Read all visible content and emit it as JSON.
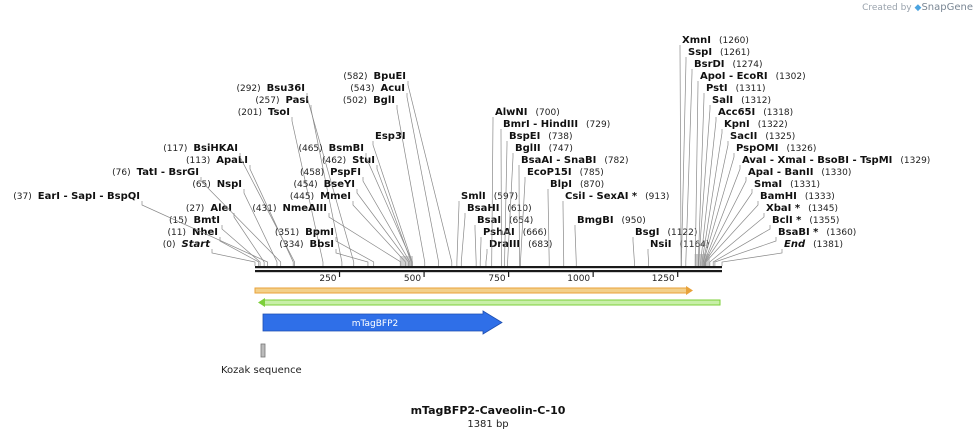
{
  "credit": {
    "prefix": "Created by",
    "brand": "SnapGene"
  },
  "map": {
    "length": 1381,
    "name": "mTagBFP2-Caveolin-C-10",
    "length_label": "1381 bp",
    "ticks": [
      250,
      500,
      750,
      1000,
      1250
    ],
    "colors": {
      "backbone": "#1a1a1a",
      "orange_arrow": "#e8a23a",
      "green_arrow": "#7ccf3a",
      "feature_blue": "#2f6fe8",
      "leader": "#777777"
    },
    "features": [
      {
        "name": "mTagBFP2",
        "start": 27,
        "end": 735,
        "direction": "forward",
        "color": "#2f6fe8"
      },
      {
        "name": "Kozak sequence",
        "start": 21,
        "end": 31,
        "color": "#bbbbbb"
      }
    ],
    "sites": [
      {
        "pos": 0,
        "text": "(0)",
        "name": "Start",
        "italic": true
      },
      {
        "pos": 11,
        "text": "(11)",
        "name": "NheI"
      },
      {
        "pos": 15,
        "text": "(15)",
        "name": "BmtI"
      },
      {
        "pos": 27,
        "text": "(27)",
        "name": "AleI"
      },
      {
        "pos": 37,
        "text": "(37)",
        "name": "EarI - SapI - BspQI"
      },
      {
        "pos": 65,
        "text": "(65)",
        "name": "NspI"
      },
      {
        "pos": 76,
        "text": "(76)",
        "name": "TatI - BsrGI"
      },
      {
        "pos": 113,
        "text": "(113)",
        "name": "ApaLI"
      },
      {
        "pos": 117,
        "text": "(117)",
        "name": "BsiHKAI"
      },
      {
        "pos": 201,
        "text": "(201)",
        "name": "TsoI"
      },
      {
        "pos": 257,
        "text": "(257)",
        "name": "PasI"
      },
      {
        "pos": 292,
        "text": "(292)",
        "name": "Bsu36I"
      },
      {
        "pos": 334,
        "text": "(334)",
        "name": "BbsI"
      },
      {
        "pos": 351,
        "text": "(351)",
        "name": "BpmI"
      },
      {
        "pos": 431,
        "text": "(431)",
        "name": "NmeAIII"
      },
      {
        "pos": 445,
        "text": "(445)",
        "name": "MmeI"
      },
      {
        "pos": 454,
        "text": "(454)",
        "name": "BseYI"
      },
      {
        "pos": 458,
        "text": "(458)",
        "name": "PspFI"
      },
      {
        "pos": 462,
        "text": "(462)",
        "name": "StuI"
      },
      {
        "pos": 465,
        "text": "(465)",
        "name": "BsmBI"
      },
      {
        "pos": 465,
        "text": "",
        "name": "Esp3I"
      },
      {
        "pos": 502,
        "text": "(502)",
        "name": "BglI"
      },
      {
        "pos": 543,
        "text": "(543)",
        "name": "AcuI"
      },
      {
        "pos": 582,
        "text": "(582)",
        "name": "BpuEI"
      },
      {
        "pos": 597,
        "text": "(597)",
        "name": "SmlI"
      },
      {
        "pos": 610,
        "text": "(610)",
        "name": "BsaHI"
      },
      {
        "pos": 654,
        "text": "(654)",
        "name": "BsaI"
      },
      {
        "pos": 666,
        "text": "(666)",
        "name": "PshAI"
      },
      {
        "pos": 683,
        "text": "(683)",
        "name": "DraIII"
      },
      {
        "pos": 700,
        "text": "(700)",
        "name": "AlwNI"
      },
      {
        "pos": 729,
        "text": "(729)",
        "name": "BmrI - HindIII"
      },
      {
        "pos": 738,
        "text": "(738)",
        "name": "BspEI"
      },
      {
        "pos": 747,
        "text": "(747)",
        "name": "BglII"
      },
      {
        "pos": 782,
        "text": "(782)",
        "name": "BsaAI - SnaBI"
      },
      {
        "pos": 785,
        "text": "(785)",
        "name": "EcoP15I"
      },
      {
        "pos": 870,
        "text": "(870)",
        "name": "BlpI"
      },
      {
        "pos": 913,
        "text": "(913)",
        "name": "CsiI - SexAI *"
      },
      {
        "pos": 950,
        "text": "(950)",
        "name": "BmgBI"
      },
      {
        "pos": 1122,
        "text": "(1122)",
        "name": "BsgI"
      },
      {
        "pos": 1164,
        "text": "(1164)",
        "name": "NsiI"
      },
      {
        "pos": 1260,
        "text": "(1260)",
        "name": "XmnI"
      },
      {
        "pos": 1261,
        "text": "(1261)",
        "name": "SspI"
      },
      {
        "pos": 1274,
        "text": "(1274)",
        "name": "BsrDI"
      },
      {
        "pos": 1302,
        "text": "(1302)",
        "name": "ApoI - EcoRI"
      },
      {
        "pos": 1311,
        "text": "(1311)",
        "name": "PstI"
      },
      {
        "pos": 1312,
        "text": "(1312)",
        "name": "SalI"
      },
      {
        "pos": 1318,
        "text": "(1318)",
        "name": "Acc65I"
      },
      {
        "pos": 1322,
        "text": "(1322)",
        "name": "KpnI"
      },
      {
        "pos": 1325,
        "text": "(1325)",
        "name": "SacII"
      },
      {
        "pos": 1326,
        "text": "(1326)",
        "name": "PspOMI"
      },
      {
        "pos": 1329,
        "text": "(1329)",
        "name": "AvaI - XmaI - BsoBI - TspMI"
      },
      {
        "pos": 1330,
        "text": "(1330)",
        "name": "ApaI - BanII"
      },
      {
        "pos": 1331,
        "text": "(1331)",
        "name": "SmaI"
      },
      {
        "pos": 1333,
        "text": "(1333)",
        "name": "BamHI"
      },
      {
        "pos": 1345,
        "text": "(1345)",
        "name": "XbaI *"
      },
      {
        "pos": 1355,
        "text": "(1355)",
        "name": "BclI *"
      },
      {
        "pos": 1360,
        "text": "(1360)",
        "name": "BsaBI *"
      },
      {
        "pos": 1381,
        "text": "(1381)",
        "name": "End",
        "italic": true
      }
    ]
  }
}
